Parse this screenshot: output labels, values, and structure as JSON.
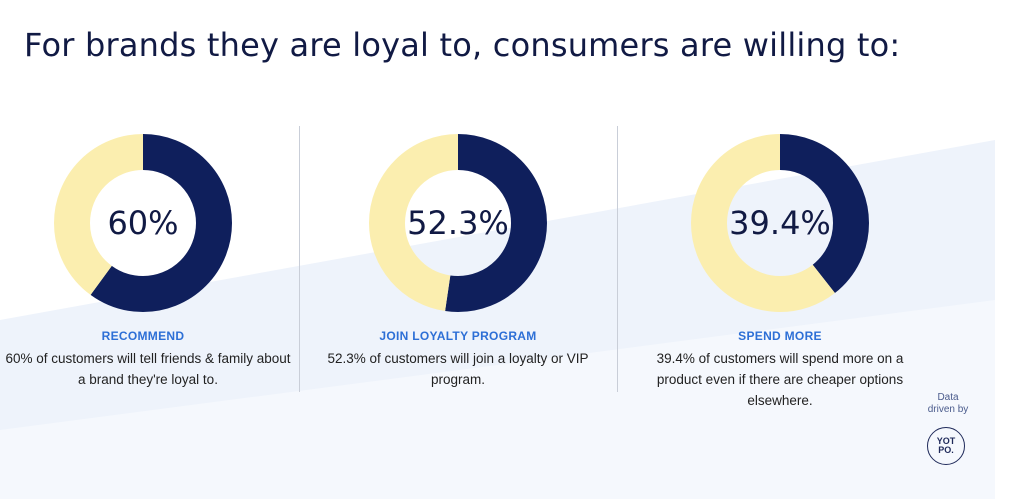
{
  "headline": "For brands they are loyal to, consumers are willing to:",
  "colors": {
    "primary": "#0f1f5c",
    "remainder": "#fbeeaf",
    "label": "#2d6fd6",
    "background_band": "#eef3fb"
  },
  "chart_data": [
    {
      "type": "pie",
      "variant": "donut",
      "value_text": "60%",
      "slices": [
        {
          "value": 60,
          "color": "#0f1f5c"
        },
        {
          "value": 40,
          "color": "#fbeeaf"
        }
      ],
      "label": "RECOMMEND",
      "description_lines": [
        "60% of customers will tell friends & family about",
        "a brand they're loyal to."
      ]
    },
    {
      "type": "pie",
      "variant": "donut",
      "value_text": "52.3%",
      "slices": [
        {
          "value": 52.3,
          "color": "#0f1f5c"
        },
        {
          "value": 47.7,
          "color": "#fbeeaf"
        }
      ],
      "label": "JOIN LOYALTY PROGRAM",
      "description_lines": [
        "52.3% of customers will join a loyalty or VIP",
        "program."
      ]
    },
    {
      "type": "pie",
      "variant": "donut",
      "value_text": "39.4%",
      "slices": [
        {
          "value": 39.4,
          "color": "#0f1f5c"
        },
        {
          "value": 60.6,
          "color": "#fbeeaf"
        }
      ],
      "label": "SPEND MORE",
      "description_lines": [
        "39.4% of customers will spend more on a",
        "product even if there are cheaper options",
        "elsewhere."
      ]
    }
  ],
  "credit": {
    "line1": "Data",
    "line2": "driven by",
    "logo_text_top": "YOT",
    "logo_text_bottom": "PO."
  }
}
